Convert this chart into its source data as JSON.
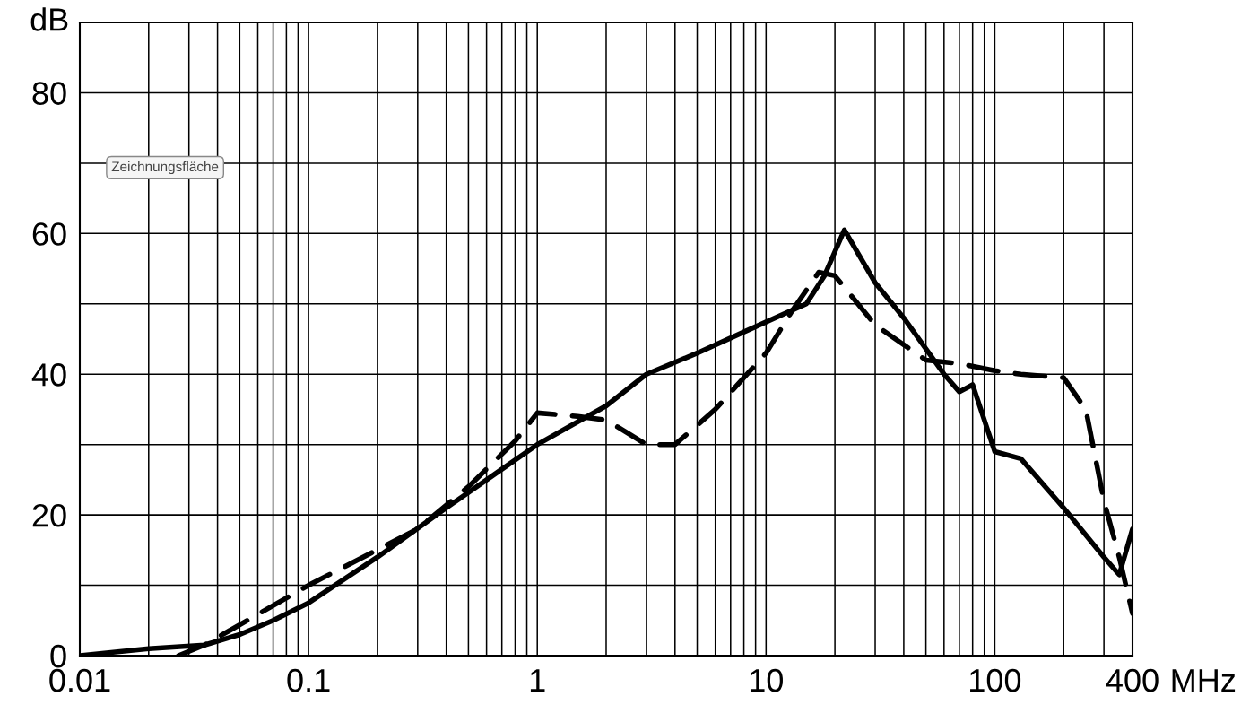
{
  "chart_data": {
    "type": "line",
    "xlabel": "MHz",
    "ylabel": "dB",
    "log": "x",
    "grid": true,
    "marker": "none",
    "xlim": [
      0.01,
      400
    ],
    "ylim": [
      0,
      90
    ],
    "xticks": [
      0.01,
      {
        "value": 0.02,
        "label": null
      },
      {
        "value": 0.03,
        "label": null
      },
      {
        "value": 0.04,
        "label": null
      },
      {
        "value": 0.05,
        "label": null
      },
      {
        "value": 0.06,
        "label": null
      },
      {
        "value": 0.07,
        "label": null
      },
      {
        "value": 0.08,
        "label": null
      },
      {
        "value": 0.09,
        "label": null
      },
      0.1,
      {
        "value": 0.2,
        "label": null
      },
      {
        "value": 0.3,
        "label": null
      },
      {
        "value": 0.4,
        "label": null
      },
      {
        "value": 0.5,
        "label": null
      },
      {
        "value": 0.6,
        "label": null
      },
      {
        "value": 0.7,
        "label": null
      },
      {
        "value": 0.8,
        "label": null
      },
      {
        "value": 0.9,
        "label": null
      },
      1,
      {
        "value": 2,
        "label": null
      },
      {
        "value": 3,
        "label": null
      },
      {
        "value": 4,
        "label": null
      },
      {
        "value": 5,
        "label": null
      },
      {
        "value": 6,
        "label": null
      },
      {
        "value": 7,
        "label": null
      },
      {
        "value": 8,
        "label": null
      },
      {
        "value": 9,
        "label": null
      },
      10,
      {
        "value": 20,
        "label": null
      },
      {
        "value": 30,
        "label": null
      },
      {
        "value": 40,
        "label": null
      },
      {
        "value": 50,
        "label": null
      },
      {
        "value": 60,
        "label": null
      },
      {
        "value": 70,
        "label": null
      },
      {
        "value": 80,
        "label": null
      },
      {
        "value": 90,
        "label": null
      },
      100,
      {
        "value": 200,
        "label": null
      },
      {
        "value": 300,
        "label": null
      },
      400
    ],
    "yticks": [
      0,
      {
        "value": 10,
        "label": null
      },
      20,
      {
        "value": 30,
        "label": null
      },
      40,
      {
        "value": 50,
        "label": null
      },
      60,
      {
        "value": 70,
        "label": null
      },
      80,
      {
        "value": 90,
        "label": null
      }
    ],
    "annotations": [
      "Zeichnungsfläche"
    ],
    "series": [
      {
        "color": "#000000",
        "line_style": "solid",
        "x": [
          0.01,
          0.02,
          0.035,
          0.05,
          0.07,
          0.1,
          0.2,
          0.4,
          0.7,
          1,
          2,
          3,
          5,
          8,
          15,
          18,
          22,
          30,
          40,
          60,
          70,
          80,
          100,
          130,
          200,
          300,
          350,
          400
        ],
        "values": [
          0,
          1,
          1.5,
          3,
          5,
          7.5,
          14,
          21,
          26.5,
          30,
          35.5,
          40,
          43,
          46,
          50,
          54,
          60.5,
          53,
          48,
          40,
          37.5,
          38.5,
          29,
          28,
          21,
          14,
          11.5,
          18
        ]
      },
      {
        "color": "#000000",
        "line_style": "dashed",
        "x": [
          0.027,
          0.035,
          0.1,
          0.3,
          0.5,
          0.8,
          1,
          1.5,
          2,
          3,
          4,
          6,
          10,
          13,
          17,
          20,
          30,
          50,
          70,
          100,
          130,
          200,
          250,
          300,
          350,
          400
        ],
        "values": [
          0,
          1.5,
          10,
          18,
          24,
          30.5,
          34.5,
          34,
          33.5,
          30,
          30,
          35,
          43,
          49,
          54.5,
          54,
          47,
          42,
          41.5,
          40.5,
          40,
          39.5,
          35,
          22,
          14,
          6
        ]
      }
    ]
  }
}
